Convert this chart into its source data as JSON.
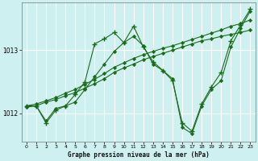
{
  "title": "Graphe pression niveau de la mer (hPa)",
  "bg_color": "#cff0f0",
  "grid_color": "#ffffff",
  "line_color": "#1a6b1a",
  "xlim": [
    -0.5,
    23.5
  ],
  "ylim": [
    1011.55,
    1013.75
  ],
  "yticks": [
    1012,
    1013
  ],
  "xticks": [
    0,
    1,
    2,
    3,
    4,
    5,
    6,
    7,
    8,
    9,
    10,
    11,
    12,
    13,
    14,
    15,
    16,
    17,
    18,
    19,
    20,
    21,
    22,
    23
  ],
  "series": [
    {
      "x": [
        0,
        1,
        2,
        3,
        4,
        5,
        6,
        7,
        8,
        9,
        10,
        11,
        12,
        13,
        14,
        15,
        16,
        17,
        18,
        19,
        20,
        21,
        22,
        23
      ],
      "y": [
        1012.1,
        1012.12,
        1012.18,
        1012.22,
        1012.28,
        1012.33,
        1012.4,
        1012.47,
        1012.55,
        1012.65,
        1012.72,
        1012.78,
        1012.85,
        1012.9,
        1012.95,
        1013.0,
        1013.05,
        1013.1,
        1013.15,
        1013.18,
        1013.22,
        1013.25,
        1013.28,
        1013.32
      ],
      "marker": "D",
      "markersize": 2.2,
      "linewidth": 0.8
    },
    {
      "x": [
        0,
        1,
        2,
        3,
        4,
        5,
        6,
        7,
        8,
        9,
        10,
        11,
        12,
        13,
        14,
        15,
        16,
        17,
        18,
        19,
        20,
        21,
        22,
        23
      ],
      "y": [
        1012.12,
        1012.15,
        1012.2,
        1012.25,
        1012.32,
        1012.38,
        1012.46,
        1012.54,
        1012.63,
        1012.73,
        1012.8,
        1012.87,
        1012.93,
        1012.98,
        1013.03,
        1013.07,
        1013.12,
        1013.17,
        1013.22,
        1013.27,
        1013.32,
        1013.38,
        1013.42,
        1013.48
      ],
      "marker": "D",
      "markersize": 2.2,
      "linewidth": 0.8
    },
    {
      "x": [
        0,
        1,
        2,
        3,
        4,
        5,
        6,
        7,
        8,
        9,
        10,
        11,
        12,
        13,
        14,
        15,
        16,
        17,
        18,
        19,
        20,
        21,
        22,
        23
      ],
      "y": [
        1012.12,
        1012.12,
        1011.85,
        1012.05,
        1012.12,
        1012.3,
        1012.5,
        1013.1,
        1013.18,
        1013.28,
        1013.12,
        1013.38,
        1013.05,
        1012.82,
        1012.68,
        1012.52,
        1011.85,
        1011.72,
        1012.15,
        1012.42,
        1012.65,
        1013.15,
        1013.4,
        1013.65
      ],
      "marker": "+",
      "markersize": 4,
      "linewidth": 0.8
    },
    {
      "x": [
        0,
        1,
        2,
        3,
        4,
        5,
        6,
        7,
        8,
        9,
        10,
        11,
        12,
        13,
        14,
        15,
        16,
        17,
        18,
        19,
        20,
        21,
        22,
        23
      ],
      "y": [
        1012.12,
        1012.12,
        1011.88,
        1012.08,
        1012.12,
        1012.18,
        1012.38,
        1012.58,
        1012.78,
        1012.98,
        1013.12,
        1013.22,
        1013.07,
        1012.78,
        1012.68,
        1012.55,
        1011.78,
        1011.68,
        1012.12,
        1012.38,
        1012.52,
        1013.05,
        1013.35,
        1013.62
      ],
      "marker": "D",
      "markersize": 2.2,
      "linewidth": 0.8
    }
  ]
}
